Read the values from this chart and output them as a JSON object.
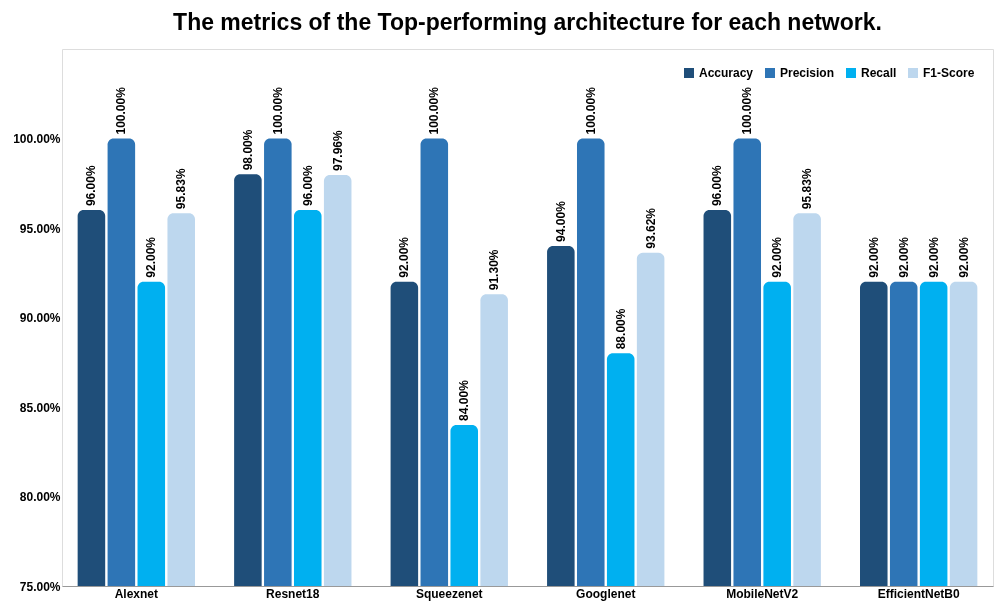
{
  "chart_data": {
    "type": "bar",
    "title": "The metrics of the Top-performing architecture for each network.",
    "categories": [
      "Alexnet",
      "Resnet18",
      "Squeezenet",
      "Googlenet",
      "MobileNetV2",
      "EfficientNetB0"
    ],
    "series": [
      {
        "name": "Accuracy",
        "color": "#1f4e79",
        "values": [
          96,
          98,
          92,
          94,
          96,
          92
        ],
        "value_labels": [
          "96.00%",
          "98.00%",
          "92.00%",
          "94.00%",
          "96.00%",
          "92.00%"
        ]
      },
      {
        "name": "Precision",
        "color": "#2e75b6",
        "values": [
          100,
          100,
          100,
          100,
          100,
          92
        ],
        "value_labels": [
          "100.00%",
          "100.00%",
          "100.00%",
          "100.00%",
          "100.00%",
          "92.00%"
        ]
      },
      {
        "name": "Recall",
        "color": "#00b0f0",
        "values": [
          92,
          96,
          84,
          88,
          92,
          92
        ],
        "value_labels": [
          "92.00%",
          "96.00%",
          "84.00%",
          "88.00%",
          "92.00%",
          "92.00%"
        ]
      },
      {
        "name": "F1-Score",
        "color": "#bdd7ee",
        "values": [
          95.83,
          97.96,
          91.3,
          93.62,
          95.83,
          92
        ],
        "value_labels": [
          "95.83%",
          "97.96%",
          "91.30%",
          "93.62%",
          "95.83%",
          "92.00%"
        ]
      }
    ],
    "ylim": [
      75,
      105
    ],
    "yticks": [
      {
        "value": 75,
        "label": "75.00%"
      },
      {
        "value": 80,
        "label": "80.00%"
      },
      {
        "value": 85,
        "label": "85.00%"
      },
      {
        "value": 90,
        "label": "90.00%"
      },
      {
        "value": 95,
        "label": "95.00%"
      },
      {
        "value": 100,
        "label": "100.00%"
      }
    ],
    "legend": "top right",
    "grid": false
  }
}
